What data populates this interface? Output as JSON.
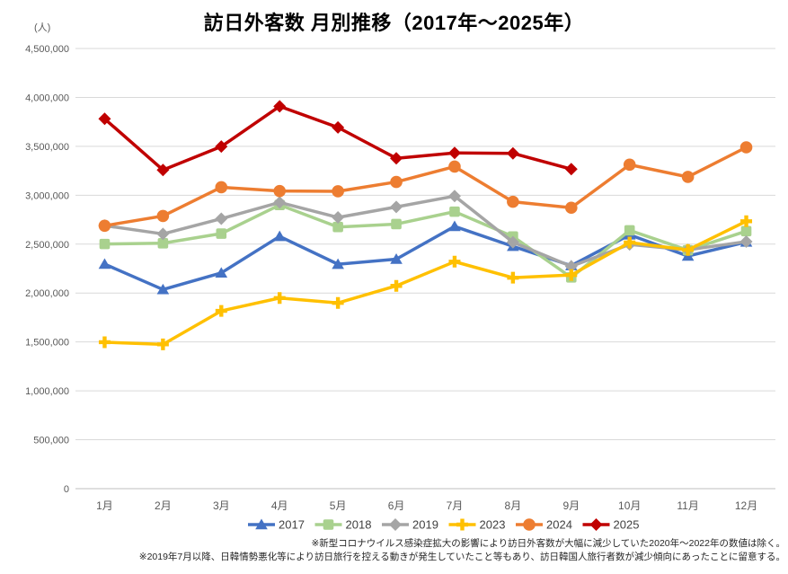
{
  "chart_data": {
    "type": "line",
    "title": "訪日外客数 月別推移（2017年～2025年）",
    "unit_label": "(人)",
    "categories": [
      "1月",
      "2月",
      "3月",
      "4月",
      "5月",
      "6月",
      "7月",
      "8月",
      "9月",
      "10月",
      "11月",
      "12月"
    ],
    "ylim": [
      0,
      4500000
    ],
    "ytick_step": 500000,
    "ytick_labels": [
      "0",
      "500,000",
      "1,000,000",
      "1,500,000",
      "2,000,000",
      "2,500,000",
      "3,000,000",
      "3,500,000",
      "4,000,000",
      "4,500,000"
    ],
    "grid": "horizontal",
    "legend_position": "bottom",
    "series": [
      {
        "name": "2017",
        "color": "#4472C4",
        "marker": "triangle",
        "values": [
          2295700,
          2035800,
          2205700,
          2579000,
          2294700,
          2346500,
          2681500,
          2477500,
          2280000,
          2595200,
          2377900,
          2521100
        ]
      },
      {
        "name": "2018",
        "color": "#A9D18E",
        "marker": "square",
        "values": [
          2501500,
          2509300,
          2607900,
          2900700,
          2675000,
          2705000,
          2832000,
          2578000,
          2159600,
          2640600,
          2437800,
          2632600
        ]
      },
      {
        "name": "2019",
        "color": "#A5A5A5",
        "marker": "diamond",
        "values": [
          2689400,
          2604300,
          2760100,
          2926700,
          2773100,
          2880000,
          2991200,
          2520100,
          2272900,
          2496600,
          2441200,
          2526000
        ]
      },
      {
        "name": "2023",
        "color": "#FFC000",
        "marker": "plus",
        "values": [
          1497300,
          1475300,
          1817500,
          1949100,
          1898900,
          2073300,
          2320600,
          2156900,
          2184300,
          2516500,
          2440800,
          2734000
        ]
      },
      {
        "name": "2024",
        "color": "#ED7D31",
        "marker": "circle",
        "values": [
          2688100,
          2788000,
          3081600,
          3042900,
          3040100,
          3135600,
          3292500,
          2933000,
          2872200,
          3312000,
          3187000,
          3489800
        ]
      },
      {
        "name": "2025",
        "color": "#C00000",
        "marker": "diamond",
        "values": [
          3781200,
          3258400,
          3497600,
          3908900,
          3693300,
          3377800,
          3432600,
          3428000,
          3266800
        ]
      }
    ],
    "footnotes": [
      "※新型コロナウイルス感染症拡大の影響により訪日外客数が大幅に減少していた2020年～2022年の数値は除く。",
      "※2019年7月以降、日韓情勢悪化等により訪日旅行を控える動きが発生していたこと等もあり、訪日韓国人旅行者数が減少傾向にあったことに留意する。"
    ],
    "colors": {
      "gridline": "#D9D9D9",
      "axis_line": "#BFBFBF",
      "tick_label": "#595959",
      "legend_text": "#404040"
    }
  }
}
